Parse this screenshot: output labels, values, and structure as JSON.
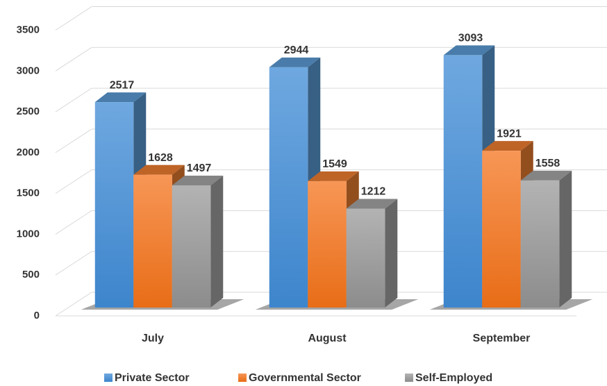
{
  "chart_data": {
    "type": "bar3d",
    "categories": [
      "July",
      "August",
      "September"
    ],
    "series": [
      {
        "name": "Private Sector",
        "color": "#5b9bd5",
        "values": [
          2517,
          2944,
          3093
        ]
      },
      {
        "name": "Governmental Sector",
        "color": "#ed7d31",
        "values": [
          1628,
          1549,
          1921
        ]
      },
      {
        "name": "Self-Employed",
        "color": "#a5a5a5",
        "values": [
          1497,
          1212,
          1558
        ]
      }
    ],
    "ylim": [
      0,
      3500
    ],
    "yticks": [
      0,
      500,
      1000,
      1500,
      2000,
      2500,
      3000,
      3500
    ],
    "grid": true
  }
}
